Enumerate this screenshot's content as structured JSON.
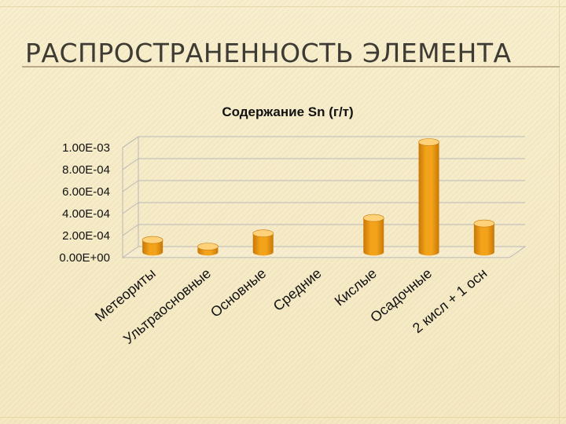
{
  "slide": {
    "title": "РАСПРОСТРАНЕННОСТЬ ЭЛЕМЕНТА"
  },
  "colors": {
    "background": "#f7ecc4",
    "bar_front": "#f2a31a",
    "bar_side": "#c87806",
    "bar_top": "#ffd27a",
    "gridline": "#b8b8b8"
  },
  "chart_data": {
    "type": "bar",
    "style": "3d-cylinder",
    "title": "Содержание Sn (г/т)",
    "xlabel": "",
    "ylabel": "",
    "categories": [
      "Метеориты",
      "Ультраосновные",
      "Основные",
      "Средние",
      "Кислые",
      "Осадочные",
      "2 кисл + 1 осн"
    ],
    "values": [
      0.00011,
      5e-05,
      0.00017,
      0.0,
      0.00031,
      0.001,
      0.00026
    ],
    "ylim": [
      0,
      0.001
    ],
    "yticks": [
      "0.00E+00",
      "2.00E-04",
      "4.00E-04",
      "6.00E-04",
      "8.00E-04",
      "1.00E-03"
    ],
    "grid": true,
    "legend": "none"
  }
}
